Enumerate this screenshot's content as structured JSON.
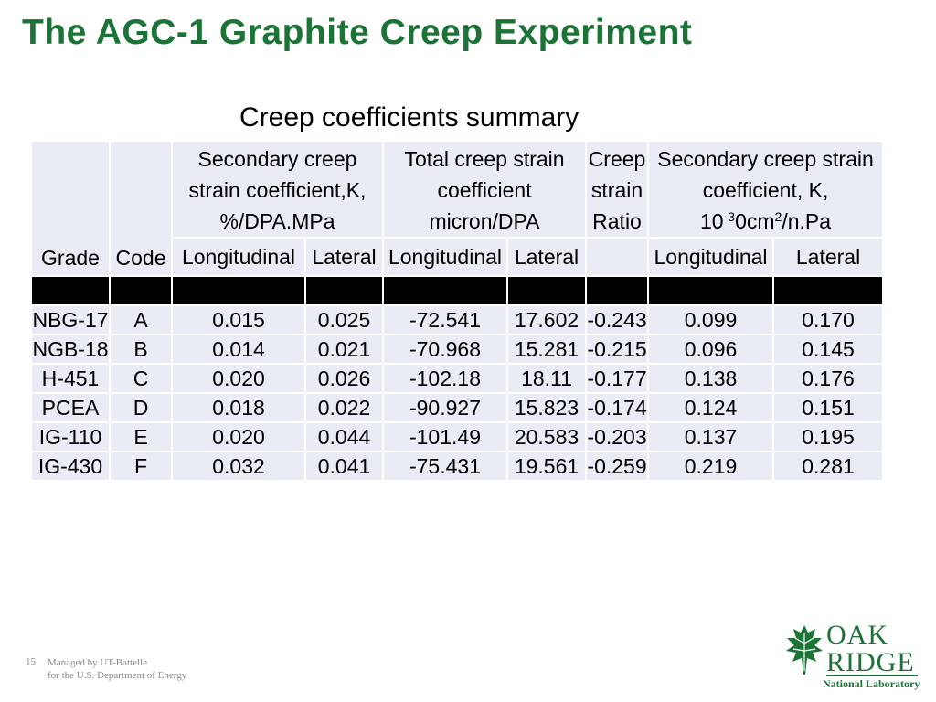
{
  "slide": {
    "title": "The AGC-1 Graphite Creep Experiment",
    "caption": "Creep coefficients summary",
    "page_number": "15",
    "footer_line1": "Managed by UT-Battelle",
    "footer_line2": "for the U.S. Department of Energy"
  },
  "logo": {
    "line1": "OAK",
    "line2": "RIDGE",
    "line3": "National Laboratory",
    "icon": "oak-leaf-icon",
    "color": "#1b7335"
  },
  "table": {
    "group_headers": {
      "secondary_pct": [
        "Secondary creep",
        "strain coefficient,K,",
        "%/DPA.MPa"
      ],
      "total": [
        "Total creep strain",
        "coefficient",
        "micron/DPA"
      ],
      "ratio": [
        "Creep",
        "strain",
        "Ratio"
      ],
      "secondary_si_line1": "Secondary creep strain",
      "secondary_si_line2": "coefficient, K,",
      "secondary_si_unit_base": "10",
      "secondary_si_unit_exp1": "-3",
      "secondary_si_unit_mid": "0cm",
      "secondary_si_unit_exp2": "2",
      "secondary_si_unit_tail": "/n.Pa"
    },
    "col_headers": {
      "grade": "Grade",
      "code": "Code",
      "longitudinal": "Longitudinal",
      "lateral": "Lateral"
    },
    "rows": [
      [
        "NBG-17",
        "A",
        "0.015",
        "0.025",
        "-72.541",
        "17.602",
        "-0.243",
        "0.099",
        "0.170"
      ],
      [
        "NGB-18",
        "B",
        "0.014",
        "0.021",
        "-70.968",
        "15.281",
        "-0.215",
        "0.096",
        "0.145"
      ],
      [
        "H-451",
        "C",
        "0.020",
        "0.026",
        "-102.18",
        "18.11",
        "-0.177",
        "0.138",
        "0.176"
      ],
      [
        "PCEA",
        "D",
        "0.018",
        "0.022",
        "-90.927",
        "15.823",
        "-0.174",
        "0.124",
        "0.151"
      ],
      [
        "IG-110",
        "E",
        "0.020",
        "0.044",
        "-101.49",
        "20.583",
        "-0.203",
        "0.137",
        "0.195"
      ],
      [
        "IG-430",
        "F",
        "0.032",
        "0.041",
        "-75.431",
        "19.561",
        "-0.259",
        "0.219",
        "0.281"
      ]
    ]
  }
}
